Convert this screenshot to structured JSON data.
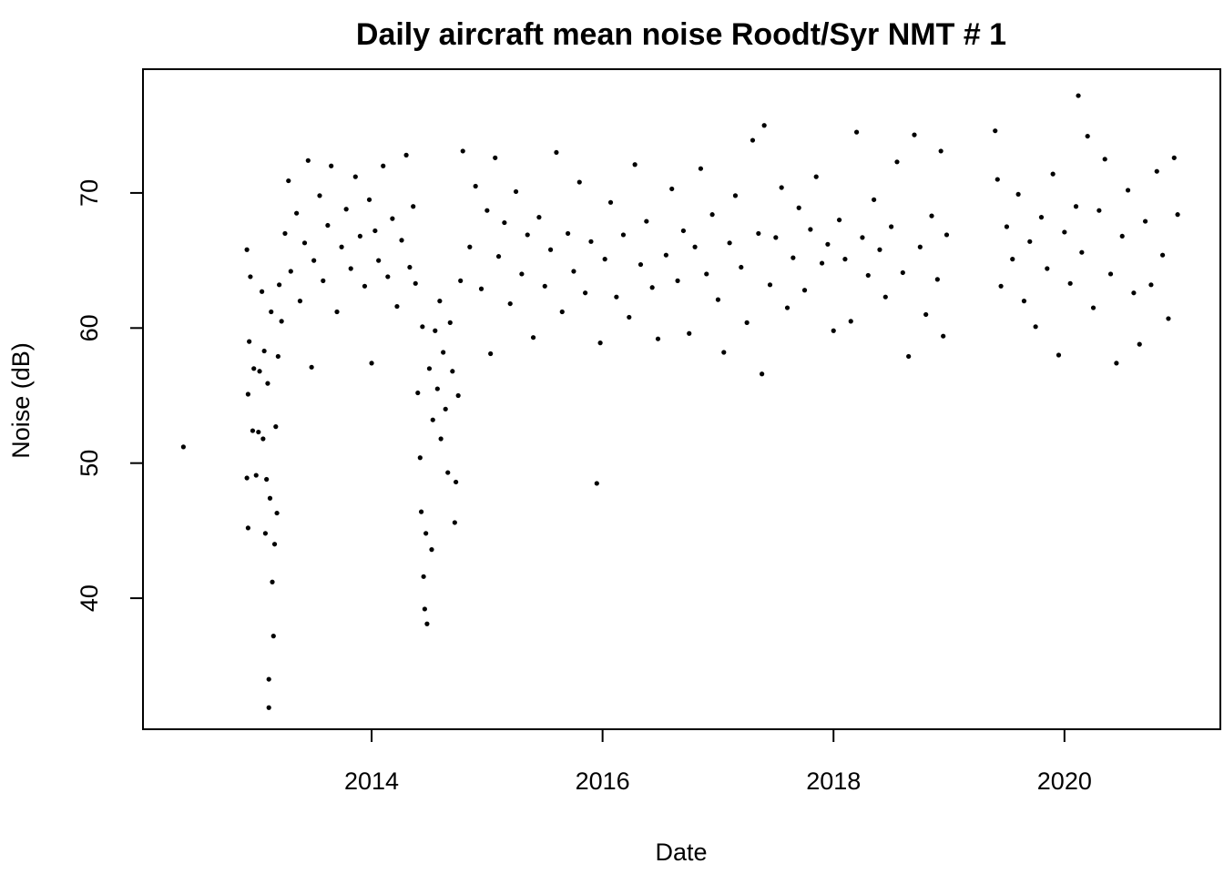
{
  "chart_data": {
    "type": "scatter",
    "title": "Daily aircraft mean noise Roodt/Syr NMT # 1",
    "x_label": "Date",
    "y_label": "Noise (dB)",
    "color": "#000000",
    "x": [
      2012.37,
      2012.93,
      2012.92,
      2012.93,
      2012.94,
      2012.92,
      2012.95,
      2012.97,
      2012.98,
      2013.0,
      2013.02,
      2013.03,
      2013.05,
      2013.06,
      2013.07,
      2013.08,
      2013.09,
      2013.1,
      2013.11,
      2013.11,
      2013.12,
      2013.13,
      2013.14,
      2013.15,
      2013.16,
      2013.17,
      2013.18,
      2013.19,
      2013.2,
      2013.22,
      2013.25,
      2013.28,
      2013.3,
      2013.35,
      2013.38,
      2013.42,
      2013.45,
      2013.48,
      2013.5,
      2013.55,
      2013.58,
      2013.62,
      2013.65,
      2013.7,
      2013.74,
      2013.78,
      2013.82,
      2013.86,
      2013.9,
      2013.94,
      2013.98,
      2014.0,
      2014.03,
      2014.06,
      2014.1,
      2014.14,
      2014.18,
      2014.22,
      2014.26,
      2014.3,
      2014.33,
      2014.36,
      2014.38,
      2014.4,
      2014.42,
      2014.43,
      2014.44,
      2014.45,
      2014.46,
      2014.47,
      2014.48,
      2014.5,
      2014.52,
      2014.53,
      2014.55,
      2014.57,
      2014.59,
      2014.6,
      2014.62,
      2014.64,
      2014.66,
      2014.68,
      2014.7,
      2014.72,
      2014.73,
      2014.75,
      2014.77,
      2014.79,
      2014.85,
      2014.9,
      2014.95,
      2015.0,
      2015.03,
      2015.07,
      2015.1,
      2015.15,
      2015.2,
      2015.25,
      2015.3,
      2015.35,
      2015.4,
      2015.45,
      2015.5,
      2015.55,
      2015.6,
      2015.65,
      2015.7,
      2015.75,
      2015.8,
      2015.85,
      2015.9,
      2015.95,
      2015.98,
      2016.02,
      2016.07,
      2016.12,
      2016.18,
      2016.23,
      2016.28,
      2016.33,
      2016.38,
      2016.43,
      2016.48,
      2016.55,
      2016.6,
      2016.65,
      2016.7,
      2016.75,
      2016.8,
      2016.85,
      2016.9,
      2016.95,
      2017.0,
      2017.05,
      2017.1,
      2017.15,
      2017.2,
      2017.25,
      2017.3,
      2017.35,
      2017.38,
      2017.4,
      2017.45,
      2017.5,
      2017.55,
      2017.6,
      2017.65,
      2017.7,
      2017.75,
      2017.8,
      2017.85,
      2017.9,
      2017.95,
      2018.0,
      2018.05,
      2018.1,
      2018.15,
      2018.2,
      2018.25,
      2018.3,
      2018.35,
      2018.4,
      2018.45,
      2018.5,
      2018.55,
      2018.6,
      2018.65,
      2018.7,
      2018.75,
      2018.8,
      2018.85,
      2018.9,
      2018.93,
      2018.95,
      2018.98,
      2019.4,
      2019.42,
      2019.45,
      2019.5,
      2019.55,
      2019.6,
      2019.65,
      2019.7,
      2019.75,
      2019.8,
      2019.85,
      2019.9,
      2019.95,
      2020.0,
      2020.05,
      2020.1,
      2020.12,
      2020.15,
      2020.2,
      2020.25,
      2020.3,
      2020.35,
      2020.4,
      2020.45,
      2020.5,
      2020.55,
      2020.6,
      2020.65,
      2020.7,
      2020.75,
      2020.8,
      2020.85,
      2020.9,
      2020.95,
      2020.98
    ],
    "values": [
      51.2,
      45.2,
      48.9,
      55.1,
      59.0,
      65.8,
      63.8,
      52.4,
      57.0,
      49.1,
      52.3,
      56.8,
      62.7,
      51.8,
      58.3,
      44.8,
      48.8,
      55.9,
      31.9,
      34.0,
      47.4,
      61.2,
      41.2,
      37.2,
      44.0,
      52.7,
      46.3,
      57.9,
      63.2,
      60.5,
      67.0,
      70.9,
      64.2,
      68.5,
      62.0,
      66.3,
      72.4,
      57.1,
      65.0,
      69.8,
      63.5,
      67.6,
      72.0,
      61.2,
      66.0,
      68.8,
      64.4,
      71.2,
      66.8,
      63.1,
      69.5,
      57.4,
      67.2,
      65.0,
      72.0,
      63.8,
      68.1,
      61.6,
      66.5,
      72.8,
      64.5,
      69.0,
      63.3,
      55.2,
      50.4,
      46.4,
      60.1,
      41.6,
      39.2,
      44.8,
      38.1,
      57.0,
      43.6,
      53.2,
      59.8,
      55.5,
      62.0,
      51.8,
      58.2,
      54.0,
      49.3,
      60.4,
      56.8,
      45.6,
      48.6,
      55.0,
      63.5,
      73.1,
      66.0,
      70.5,
      62.9,
      68.7,
      58.1,
      72.6,
      65.3,
      67.8,
      61.8,
      70.1,
      64.0,
      66.9,
      59.3,
      68.2,
      63.1,
      65.8,
      73.0,
      61.2,
      67.0,
      64.2,
      70.8,
      62.6,
      66.4,
      48.5,
      58.9,
      65.1,
      69.3,
      62.3,
      66.9,
      60.8,
      72.1,
      64.7,
      67.9,
      63.0,
      59.2,
      65.4,
      70.3,
      63.5,
      67.2,
      59.6,
      66.0,
      71.8,
      64.0,
      68.4,
      62.1,
      58.2,
      66.3,
      69.8,
      64.5,
      60.4,
      73.9,
      67.0,
      56.6,
      75.0,
      63.2,
      66.7,
      70.4,
      61.5,
      65.2,
      68.9,
      62.8,
      67.3,
      71.2,
      64.8,
      66.2,
      59.8,
      68.0,
      65.1,
      60.5,
      74.5,
      66.7,
      63.9,
      69.5,
      65.8,
      62.3,
      67.5,
      72.3,
      64.1,
      57.9,
      74.3,
      66.0,
      61.0,
      68.3,
      63.6,
      73.1,
      59.4,
      66.9,
      74.6,
      71.0,
      63.1,
      67.5,
      65.1,
      69.9,
      62.0,
      66.4,
      60.1,
      68.2,
      64.4,
      71.4,
      58.0,
      67.1,
      63.3,
      69.0,
      77.2,
      65.6,
      74.2,
      61.5,
      68.7,
      72.5,
      64.0,
      57.4,
      66.8,
      70.2,
      62.6,
      58.8,
      67.9,
      63.2,
      71.6,
      65.4,
      60.7,
      72.6,
      68.4
    ],
    "xlim": [
      2012.02,
      2021.35
    ],
    "ylim": [
      30.3,
      79.16
    ],
    "xticks": [
      2014,
      2016,
      2018,
      2020
    ],
    "yticks": [
      40,
      50,
      60,
      70
    ]
  }
}
